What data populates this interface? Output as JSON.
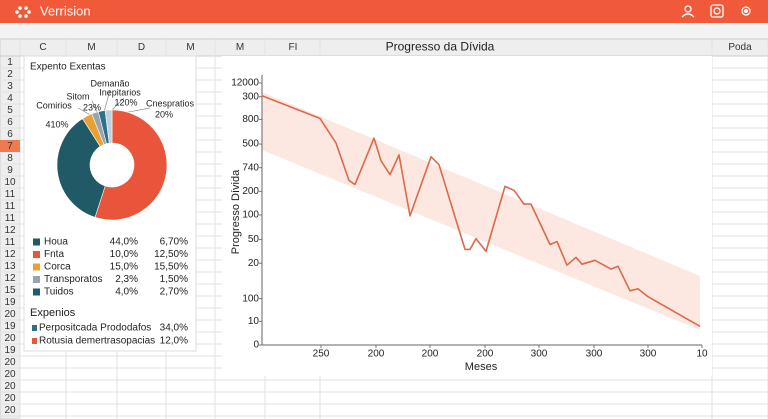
{
  "app": {
    "title": "Verrision"
  },
  "columns": [
    "C",
    "M",
    "D",
    "M",
    "M",
    "FI"
  ],
  "sheet_title": "Progresso da Dívida",
  "right_column": "Poda",
  "rows": [
    "1",
    "2",
    "3",
    "4",
    "5",
    "6",
    "6",
    "7",
    "8",
    "9",
    "10",
    "11",
    "11",
    "11",
    "12",
    "11",
    "12",
    "13",
    "12",
    "15",
    "19",
    "20",
    "19",
    "20",
    "19",
    "20",
    "20",
    "20",
    "20",
    "20"
  ],
  "pie_panel": {
    "title": "Expento Exentas",
    "table": [
      {
        "name": "Houa",
        "share": "44,0%",
        "rate": "6,70%",
        "color": "#1f5a66"
      },
      {
        "name": "Fnta",
        "share": "10,0%",
        "rate": "12,50%",
        "color": "#e8553a"
      },
      {
        "name": "Corca",
        "share": "15,0%",
        "rate": "15,50%",
        "color": "#e8a030"
      },
      {
        "name": "Transporatos",
        "share": "2,3%",
        "rate": "1,50%",
        "color": "#9aa4ad"
      },
      {
        "name": "Tuidos",
        "share": "4,0%",
        "rate": "2,70%",
        "color": "#1d5e6e"
      }
    ],
    "expenses": {
      "title": "Expenios",
      "rows": [
        {
          "name": "Perpositcada Prododafos",
          "value": "34,0%",
          "color": "#2f6f8a"
        },
        {
          "name": "Rotusia demertrasopacias",
          "value": "12,0%",
          "color": "#e8553a"
        }
      ]
    }
  },
  "chart_data": [
    {
      "type": "pie",
      "values": [
        55,
        36,
        3,
        2,
        2,
        2
      ],
      "colors": [
        "#e8553a",
        "#1f5a66",
        "#e8a030",
        "#9aa4ad",
        "#2f6f8a",
        "#b8d2e0"
      ],
      "annotations": [
        "Demanão",
        "Sitom",
        "Inepitarios",
        "23%",
        "120%",
        "Comirios",
        "Cnespratios",
        "20%",
        "410%"
      ]
    },
    {
      "type": "line",
      "y_label": "Progresso Dívida",
      "x_label": "Meses",
      "xlim": [
        0,
        440
      ],
      "xticks": [
        {
          "value": 59,
          "label": "250"
        },
        {
          "value": 114,
          "label": "200"
        },
        {
          "value": 168,
          "label": "200"
        },
        {
          "value": 223,
          "label": "200"
        },
        {
          "value": 277,
          "label": "300"
        },
        {
          "value": 332,
          "label": "300"
        },
        {
          "value": 386,
          "label": "300"
        },
        {
          "value": 440,
          "label": "10"
        }
      ],
      "ylim": [
        0,
        270
      ],
      "yticks": [
        0,
        {
          "value": 24,
          "label": "10"
        },
        {
          "value": 47,
          "label": "100"
        },
        {
          "value": 83,
          "label": "20"
        },
        {
          "value": 107,
          "label": "50"
        },
        {
          "value": 132,
          "label": "100"
        },
        {
          "value": 156,
          "label": "200"
        },
        {
          "value": 180,
          "label": "740"
        },
        {
          "value": 204,
          "label": "500"
        },
        {
          "value": 229,
          "label": "800"
        },
        {
          "value": 252,
          "label": "300"
        },
        {
          "value": 266,
          "label": "12000"
        }
      ],
      "series": [
        {
          "color": "#e0684a",
          "x": [
            0,
            58,
            74,
            87,
            93,
            112,
            119,
            128,
            137,
            148,
            169,
            177,
            203,
            208,
            214,
            224,
            243,
            252,
            262,
            269,
            288,
            295,
            305,
            314,
            320,
            333,
            349,
            356,
            368,
            376,
            386,
            438
          ],
          "values": [
            253,
            230,
            205,
            167,
            163,
            210,
            187,
            173,
            193,
            131,
            191,
            183,
            97,
            97,
            108,
            95,
            161,
            157,
            143,
            143,
            102,
            105,
            81,
            89,
            82,
            86,
            77,
            80,
            55,
            57,
            49,
            19
          ]
        }
      ]
    }
  ]
}
